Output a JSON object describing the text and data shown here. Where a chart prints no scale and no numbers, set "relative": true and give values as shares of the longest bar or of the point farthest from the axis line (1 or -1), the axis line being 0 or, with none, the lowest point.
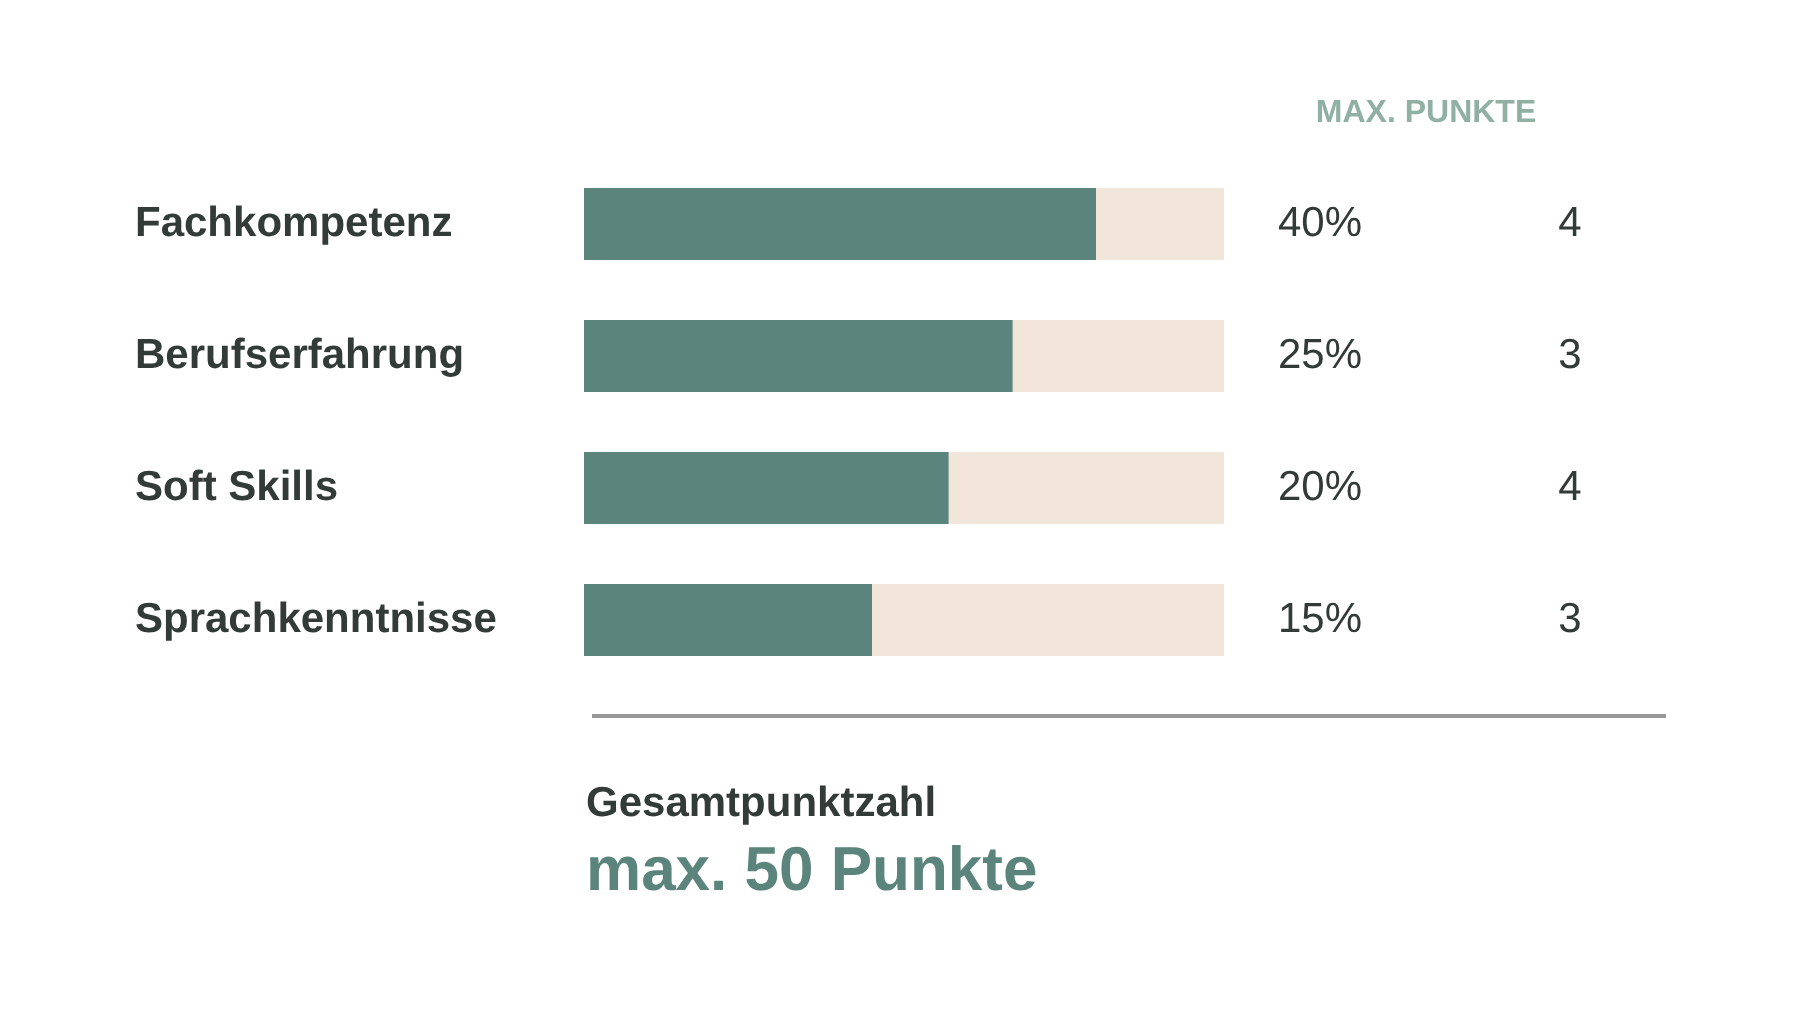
{
  "chart_data": {
    "type": "bar",
    "orientation": "horizontal",
    "stacked": true,
    "relative": true,
    "categories": [
      "Fachkompetenz",
      "Berufserfahrung",
      "Soft Skills",
      "Sprachkenntnisse"
    ],
    "series": [
      {
        "color": "#5b857c",
        "values": [
          0.8,
          0.67,
          0.57,
          0.45
        ]
      },
      {
        "color": "#f2e6da",
        "values": [
          0.2,
          0.33,
          0.43,
          0.55
        ]
      }
    ],
    "annotations": [
      "MAX. PUNKTE",
      "40%",
      "4",
      "25%",
      "3",
      "20%",
      "4",
      "15%",
      "3",
      "Gesamtpunktzahl",
      "max. 50 Punkte"
    ]
  }
}
